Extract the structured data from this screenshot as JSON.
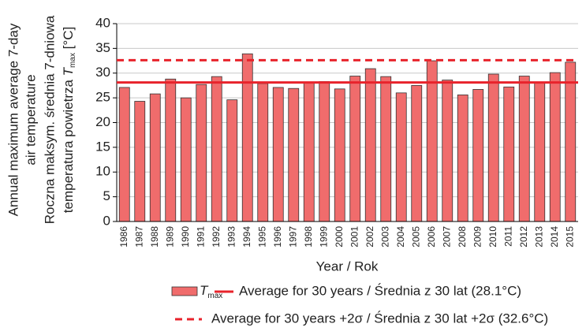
{
  "chart_data": {
    "type": "bar",
    "y_label_lines": [
      "Annual maximum average 7-day",
      "air temperature",
      "Roczna maksym. średnia 7-dniowa"
    ],
    "y_label_last": {
      "text": "temperatura powietrza ",
      "symbol": "T",
      "subscript": "max",
      "unit": " [°C]"
    },
    "x_label": "Year / Rok",
    "categories": [
      "1986",
      "1987",
      "1988",
      "1989",
      "1990",
      "1991",
      "1992",
      "1993",
      "1994",
      "1995",
      "1996",
      "1997",
      "1998",
      "1999",
      "2000",
      "2001",
      "2002",
      "2003",
      "2004",
      "2005",
      "2006",
      "2007",
      "2008",
      "2009",
      "2010",
      "2011",
      "2012",
      "2013",
      "2014",
      "2015"
    ],
    "series": [
      {
        "name": "T",
        "name_subscript": "max",
        "color": "#f06c6c",
        "values": [
          27.1,
          24.3,
          25.8,
          28.8,
          25.0,
          27.7,
          29.3,
          24.6,
          33.9,
          27.9,
          27.1,
          26.9,
          28.0,
          28.3,
          26.8,
          29.4,
          30.9,
          29.3,
          26.0,
          27.5,
          32.5,
          28.6,
          25.6,
          26.7,
          29.8,
          27.2,
          29.4,
          28.0,
          30.1,
          32.2
        ]
      }
    ],
    "reference_lines": [
      {
        "name": "Average for 30 years / Średnia z 30 lat (28.1°C)",
        "value": 28.1,
        "color": "#e8232b",
        "dashed": false
      },
      {
        "name": "Average for 30 years +2σ / Średnia z 30 lat +2σ (32.6°C)",
        "value": 32.6,
        "color": "#e8232b",
        "dashed": true
      }
    ],
    "ylim": [
      0,
      40
    ],
    "yticks": [
      0,
      5,
      10,
      15,
      20,
      25,
      30,
      35,
      40
    ],
    "grid": true
  }
}
